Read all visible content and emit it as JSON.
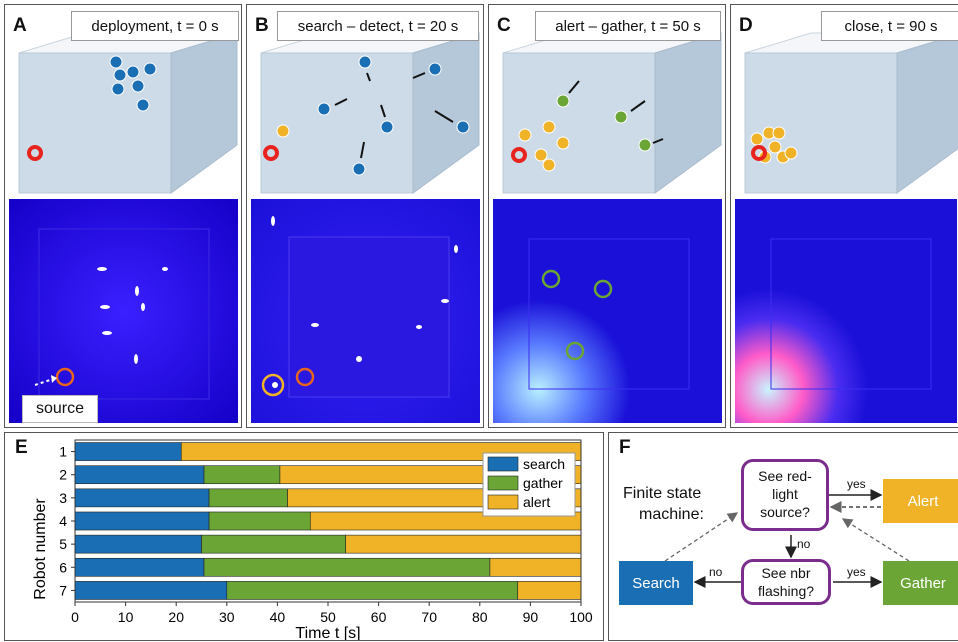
{
  "panels": [
    {
      "letter": "A",
      "label": "deployment, t = 0 s"
    },
    {
      "letter": "B",
      "label": "search – detect, t = 20 s"
    },
    {
      "letter": "C",
      "label": "alert – gather, t = 50 s"
    },
    {
      "letter": "D",
      "label": "close,  t = 90 s"
    }
  ],
  "source_label": "source",
  "colors": {
    "search": "#1a6fb4",
    "gather": "#6aa535",
    "alert": "#f0b328",
    "source_ring": "#e8231e",
    "fsm_border": "#7b2d8e"
  },
  "chart_data": {
    "type": "bar",
    "orientation": "horizontal",
    "stacked": true,
    "panel_letter": "E",
    "categories": [
      "1",
      "2",
      "3",
      "4",
      "5",
      "6",
      "7"
    ],
    "series": [
      {
        "name": "search",
        "values": [
          21,
          25.5,
          26.5,
          26.5,
          25,
          25.5,
          30
        ]
      },
      {
        "name": "gather",
        "values": [
          0,
          15,
          15.5,
          20,
          28.5,
          56.5,
          57.5
        ]
      },
      {
        "name": "alert",
        "values": [
          79,
          59.5,
          58,
          53.5,
          46.5,
          18,
          12.5
        ]
      }
    ],
    "xlabel": "Time t [s]",
    "ylabel": "Robot number",
    "xlim": [
      0,
      100
    ],
    "xticks": [
      "0",
      "10",
      "20",
      "30",
      "40",
      "50",
      "60",
      "70",
      "80",
      "90",
      "100"
    ],
    "legend_position": "top-right"
  },
  "fsm": {
    "letter": "F",
    "title_line1": "Finite state",
    "title_line2": "machine:",
    "decision1": [
      "See red-",
      "light",
      "source?"
    ],
    "decision2": [
      "See nbr",
      "flashing?"
    ],
    "alert": "Alert",
    "gather": "Gather",
    "search": "Search",
    "yes1": "yes",
    "yes2": "yes",
    "no1": "no",
    "no2": "no"
  }
}
